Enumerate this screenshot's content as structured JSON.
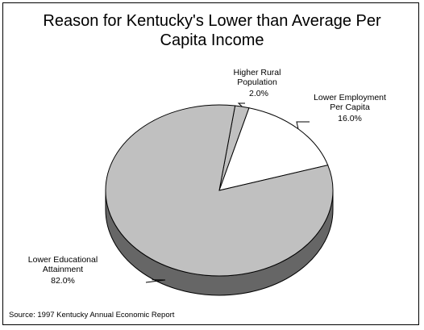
{
  "chart_data": {
    "type": "pie",
    "title_line1": "Reason for Kentucky's Lower than Average Per",
    "title_line2": "Capita Income",
    "slices": [
      {
        "label_lines": [
          "Higher Rural",
          "Population"
        ],
        "value": 2.0,
        "value_label": "2.0%",
        "color": "#c0c0c0"
      },
      {
        "label_lines": [
          "Lower Employment",
          "Per Capita"
        ],
        "value": 16.0,
        "value_label": "16.0%",
        "color": "#ffffff"
      },
      {
        "label_lines": [
          "Lower Educational",
          "Attainment"
        ],
        "value": 82.0,
        "value_label": "82.0%",
        "color": "#c0c0c0"
      }
    ],
    "depth_color": "#666666",
    "edge_color": "#000000",
    "three_d": true
  },
  "source": "Source:  1997 Kentucky Annual Economic Report"
}
